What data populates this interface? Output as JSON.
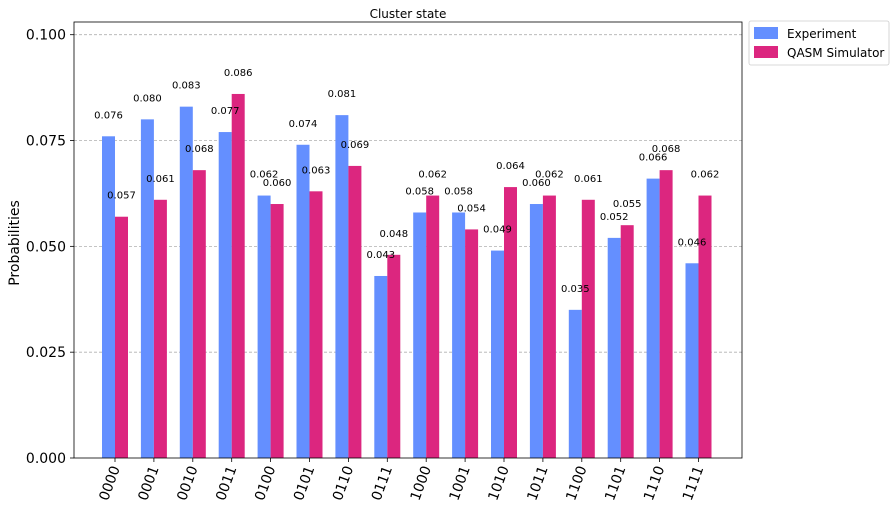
{
  "chart_data": {
    "type": "bar",
    "title": "Cluster state",
    "xlabel": "",
    "ylabel": "Probabilities",
    "ylim": [
      0,
      0.103
    ],
    "yticks": [
      "0.000",
      "0.025",
      "0.050",
      "0.075",
      "0.100"
    ],
    "ytick_values": [
      0,
      0.025,
      0.05,
      0.075,
      0.1
    ],
    "grid": true,
    "legend_position": "outside-top-right",
    "categories": [
      "0000",
      "0001",
      "0010",
      "0011",
      "0100",
      "0101",
      "0110",
      "0111",
      "1000",
      "1001",
      "1010",
      "1011",
      "1100",
      "1101",
      "1110",
      "1111"
    ],
    "series": [
      {
        "name": "Experiment",
        "color": "#648fff",
        "values": [
          0.076,
          0.08,
          0.083,
          0.077,
          0.062,
          0.074,
          0.081,
          0.043,
          0.058,
          0.058,
          0.049,
          0.06,
          0.035,
          0.052,
          0.066,
          0.046
        ],
        "labels": [
          "0.076",
          "0.080",
          "0.083",
          "0.077",
          "0.062",
          "0.074",
          "0.081",
          "0.043",
          "0.058",
          "0.058",
          "0.049",
          "0.060",
          "0.035",
          "0.052",
          "0.066",
          "0.046"
        ]
      },
      {
        "name": "QASM Simulator",
        "color": "#dc267f",
        "values": [
          0.057,
          0.061,
          0.068,
          0.086,
          0.06,
          0.063,
          0.069,
          0.048,
          0.062,
          0.054,
          0.064,
          0.062,
          0.061,
          0.055,
          0.068,
          0.062
        ],
        "labels": [
          "0.057",
          "0.061",
          "0.068",
          "0.086",
          "0.060",
          "0.063",
          "0.069",
          "0.048",
          "0.062",
          "0.054",
          "0.064",
          "0.062",
          "0.061",
          "0.055",
          "0.068",
          "0.062"
        ]
      }
    ]
  }
}
